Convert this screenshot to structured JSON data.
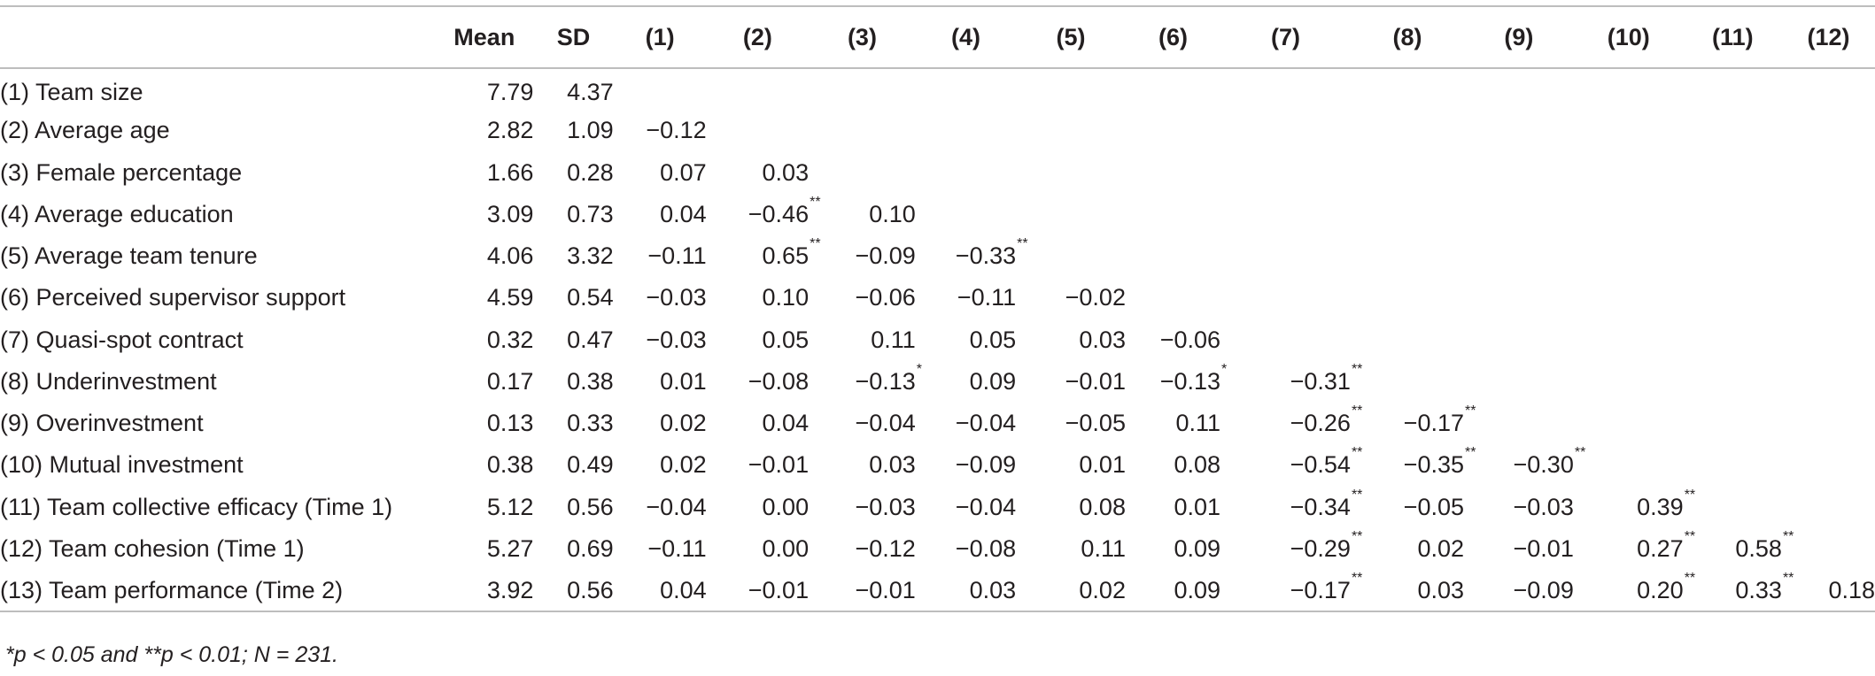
{
  "header": [
    "",
    "Mean",
    "SD",
    "(1)",
    "(2)",
    "(3)",
    "(4)",
    "(5)",
    "(6)",
    "(7)",
    "(8)",
    "(9)",
    "(10)",
    "(11)",
    "(12)"
  ],
  "rows": [
    {
      "label": "(1) Team size",
      "mean": "7.79",
      "sd": "4.37",
      "r": []
    },
    {
      "label": "(2) Average age",
      "mean": "2.82",
      "sd": "1.09",
      "r": [
        {
          "v": "−0.12",
          "s": ""
        }
      ]
    },
    {
      "label": "(3) Female percentage",
      "mean": "1.66",
      "sd": "0.28",
      "r": [
        {
          "v": "0.07",
          "s": ""
        },
        {
          "v": "0.03",
          "s": ""
        }
      ]
    },
    {
      "label": "(4) Average education",
      "mean": "3.09",
      "sd": "0.73",
      "r": [
        {
          "v": "0.04",
          "s": ""
        },
        {
          "v": "−0.46",
          "s": "**"
        },
        {
          "v": "0.10",
          "s": ""
        }
      ]
    },
    {
      "label": "(5) Average team tenure",
      "mean": "4.06",
      "sd": "3.32",
      "r": [
        {
          "v": "−0.11",
          "s": ""
        },
        {
          "v": "0.65",
          "s": "**"
        },
        {
          "v": "−0.09",
          "s": ""
        },
        {
          "v": "−0.33",
          "s": "**"
        }
      ]
    },
    {
      "label": "(6) Perceived supervisor support",
      "mean": "4.59",
      "sd": "0.54",
      "r": [
        {
          "v": "−0.03",
          "s": ""
        },
        {
          "v": "0.10",
          "s": ""
        },
        {
          "v": "−0.06",
          "s": ""
        },
        {
          "v": "−0.11",
          "s": ""
        },
        {
          "v": "−0.02",
          "s": ""
        }
      ]
    },
    {
      "label": "(7) Quasi-spot contract",
      "mean": "0.32",
      "sd": "0.47",
      "r": [
        {
          "v": "−0.03",
          "s": ""
        },
        {
          "v": "0.05",
          "s": ""
        },
        {
          "v": "0.11",
          "s": ""
        },
        {
          "v": "0.05",
          "s": ""
        },
        {
          "v": "0.03",
          "s": ""
        },
        {
          "v": "−0.06",
          "s": ""
        }
      ]
    },
    {
      "label": "(8) Underinvestment",
      "mean": "0.17",
      "sd": "0.38",
      "r": [
        {
          "v": "0.01",
          "s": ""
        },
        {
          "v": "−0.08",
          "s": ""
        },
        {
          "v": "−0.13",
          "s": "*"
        },
        {
          "v": "0.09",
          "s": ""
        },
        {
          "v": "−0.01",
          "s": ""
        },
        {
          "v": "−0.13",
          "s": "*"
        },
        {
          "v": "−0.31",
          "s": "**"
        }
      ]
    },
    {
      "label": "(9) Overinvestment",
      "mean": "0.13",
      "sd": "0.33",
      "r": [
        {
          "v": "0.02",
          "s": ""
        },
        {
          "v": "0.04",
          "s": ""
        },
        {
          "v": "−0.04",
          "s": ""
        },
        {
          "v": "−0.04",
          "s": ""
        },
        {
          "v": "−0.05",
          "s": ""
        },
        {
          "v": "0.11",
          "s": ""
        },
        {
          "v": "−0.26",
          "s": "**"
        },
        {
          "v": "−0.17",
          "s": "**"
        }
      ]
    },
    {
      "label": "(10) Mutual investment",
      "mean": "0.38",
      "sd": "0.49",
      "r": [
        {
          "v": "0.02",
          "s": ""
        },
        {
          "v": "−0.01",
          "s": ""
        },
        {
          "v": "0.03",
          "s": ""
        },
        {
          "v": "−0.09",
          "s": ""
        },
        {
          "v": "0.01",
          "s": ""
        },
        {
          "v": "0.08",
          "s": ""
        },
        {
          "v": "−0.54",
          "s": "**"
        },
        {
          "v": "−0.35",
          "s": "**"
        },
        {
          "v": "−0.30",
          "s": "**"
        }
      ]
    },
    {
      "label": "(11) Team collective efficacy (Time 1)",
      "mean": "5.12",
      "sd": "0.56",
      "r": [
        {
          "v": "−0.04",
          "s": ""
        },
        {
          "v": "0.00",
          "s": ""
        },
        {
          "v": "−0.03",
          "s": ""
        },
        {
          "v": "−0.04",
          "s": ""
        },
        {
          "v": "0.08",
          "s": ""
        },
        {
          "v": "0.01",
          "s": ""
        },
        {
          "v": "−0.34",
          "s": "**"
        },
        {
          "v": "−0.05",
          "s": ""
        },
        {
          "v": "−0.03",
          "s": ""
        },
        {
          "v": "0.39",
          "s": "**"
        }
      ]
    },
    {
      "label": "(12) Team cohesion (Time 1)",
      "mean": "5.27",
      "sd": "0.69",
      "r": [
        {
          "v": "−0.11",
          "s": ""
        },
        {
          "v": "0.00",
          "s": ""
        },
        {
          "v": "−0.12",
          "s": ""
        },
        {
          "v": "−0.08",
          "s": ""
        },
        {
          "v": "0.11",
          "s": ""
        },
        {
          "v": "0.09",
          "s": ""
        },
        {
          "v": "−0.29",
          "s": "**"
        },
        {
          "v": "0.02",
          "s": ""
        },
        {
          "v": "−0.01",
          "s": ""
        },
        {
          "v": "0.27",
          "s": "**"
        },
        {
          "v": "0.58",
          "s": "**"
        }
      ]
    },
    {
      "label": "(13) Team performance (Time 2)",
      "mean": "3.92",
      "sd": "0.56",
      "r": [
        {
          "v": "0.04",
          "s": ""
        },
        {
          "v": "−0.01",
          "s": ""
        },
        {
          "v": "−0.01",
          "s": ""
        },
        {
          "v": "0.03",
          "s": ""
        },
        {
          "v": "0.02",
          "s": ""
        },
        {
          "v": "0.09",
          "s": ""
        },
        {
          "v": "−0.17",
          "s": "**"
        },
        {
          "v": "0.03",
          "s": ""
        },
        {
          "v": "−0.09",
          "s": ""
        },
        {
          "v": "0.20",
          "s": "**"
        },
        {
          "v": "0.33",
          "s": "**"
        },
        {
          "v": "0.18",
          "s": "**"
        }
      ]
    }
  ],
  "note": "*p < 0.05 and **p < 0.01; N = 231."
}
